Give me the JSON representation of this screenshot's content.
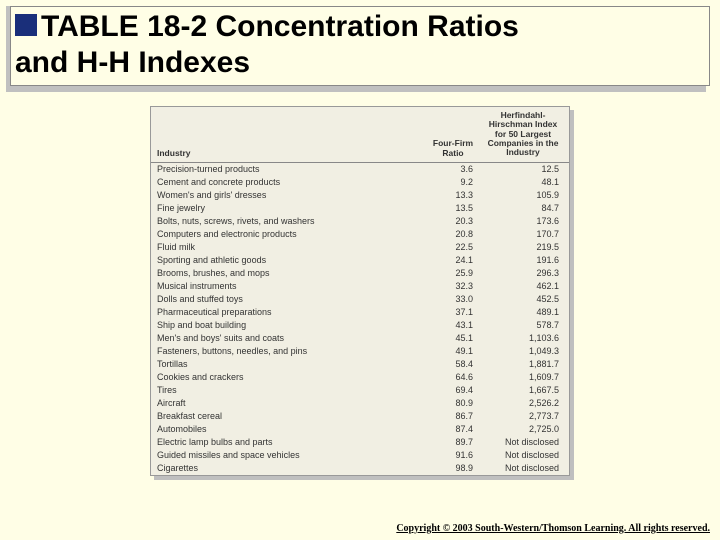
{
  "title": {
    "line1_prefix": "TABLE",
    "line1_rest": " 18-2 Concentration Ratios",
    "line2": "and H-H Indexes"
  },
  "table": {
    "background_color": "#f1efe3",
    "border_color": "#999999",
    "shadow_color": "#bfbfbf",
    "font_size_pt": 9,
    "columns": {
      "c1": "Industry",
      "c2": "Four-Firm Ratio",
      "c3": "Herfindahl-Hirschman Index for 50 Largest Companies in the Industry"
    },
    "rows": [
      {
        "industry": "Precision-turned products",
        "ratio": "3.6",
        "hhi": "12.5"
      },
      {
        "industry": "Cement and concrete products",
        "ratio": "9.2",
        "hhi": "48.1"
      },
      {
        "industry": "Women's and girls' dresses",
        "ratio": "13.3",
        "hhi": "105.9"
      },
      {
        "industry": "Fine jewelry",
        "ratio": "13.5",
        "hhi": "84.7"
      },
      {
        "industry": "Bolts, nuts, screws, rivets, and washers",
        "ratio": "20.3",
        "hhi": "173.6"
      },
      {
        "industry": "Computers and electronic products",
        "ratio": "20.8",
        "hhi": "170.7"
      },
      {
        "industry": "Fluid milk",
        "ratio": "22.5",
        "hhi": "219.5"
      },
      {
        "industry": "Sporting and athletic goods",
        "ratio": "24.1",
        "hhi": "191.6"
      },
      {
        "industry": "Brooms, brushes, and mops",
        "ratio": "25.9",
        "hhi": "296.3"
      },
      {
        "industry": "Musical instruments",
        "ratio": "32.3",
        "hhi": "462.1"
      },
      {
        "industry": "Dolls and stuffed toys",
        "ratio": "33.0",
        "hhi": "452.5"
      },
      {
        "industry": "Pharmaceutical preparations",
        "ratio": "37.1",
        "hhi": "489.1"
      },
      {
        "industry": "Ship and boat building",
        "ratio": "43.1",
        "hhi": "578.7"
      },
      {
        "industry": "Men's and boys' suits and coats",
        "ratio": "45.1",
        "hhi": "1,103.6"
      },
      {
        "industry": "Fasteners, buttons, needles, and pins",
        "ratio": "49.1",
        "hhi": "1,049.3"
      },
      {
        "industry": "Tortillas",
        "ratio": "58.4",
        "hhi": "1,881.7"
      },
      {
        "industry": "Cookies and crackers",
        "ratio": "64.6",
        "hhi": "1,609.7"
      },
      {
        "industry": "Tires",
        "ratio": "69.4",
        "hhi": "1,667.5"
      },
      {
        "industry": "Aircraft",
        "ratio": "80.9",
        "hhi": "2,526.2"
      },
      {
        "industry": "Breakfast cereal",
        "ratio": "86.7",
        "hhi": "2,773.7"
      },
      {
        "industry": "Automobiles",
        "ratio": "87.4",
        "hhi": "2,725.0"
      },
      {
        "industry": "Electric lamp bulbs and parts",
        "ratio": "89.7",
        "hhi": "Not disclosed"
      },
      {
        "industry": "Guided missiles and space vehicles",
        "ratio": "91.6",
        "hhi": "Not disclosed"
      },
      {
        "industry": "Cigarettes",
        "ratio": "98.9",
        "hhi": "Not disclosed"
      }
    ]
  },
  "copyright": "Copyright © 2003 South-Western/Thomson Learning. All rights reserved.",
  "colors": {
    "page_bg": "#fffee6",
    "bullet": "#1a2f7a",
    "title_shadow": "#c0c0c0"
  }
}
